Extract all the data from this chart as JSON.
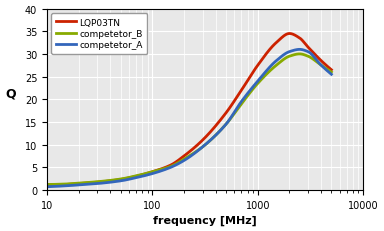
{
  "title": "",
  "xlabel": "frequency [MHz]",
  "ylabel": "Q",
  "xlim": [
    10,
    10000
  ],
  "ylim": [
    0,
    40
  ],
  "yticks": [
    0,
    5,
    10,
    15,
    20,
    25,
    30,
    35,
    40
  ],
  "background_color": "#ffffff",
  "plot_bg_color": "#e8e8e8",
  "grid_color": "#ffffff",
  "minor_grid_color": "#ffffff",
  "series": [
    {
      "label": "LQP03TN",
      "color": "#cc2200",
      "linewidth": 2.0,
      "points": [
        [
          10,
          1.1
        ],
        [
          15,
          1.2
        ],
        [
          20,
          1.4
        ],
        [
          30,
          1.7
        ],
        [
          50,
          2.3
        ],
        [
          70,
          3.0
        ],
        [
          100,
          4.0
        ],
        [
          150,
          5.5
        ],
        [
          200,
          7.5
        ],
        [
          300,
          11.0
        ],
        [
          500,
          17.0
        ],
        [
          700,
          22.0
        ],
        [
          1000,
          27.5
        ],
        [
          1500,
          32.5
        ],
        [
          2000,
          34.5
        ],
        [
          2500,
          33.5
        ],
        [
          3000,
          31.5
        ],
        [
          4000,
          28.5
        ],
        [
          5000,
          26.5
        ]
      ]
    },
    {
      "label": "competetor_B",
      "color": "#88aa00",
      "linewidth": 2.0,
      "points": [
        [
          10,
          1.2
        ],
        [
          15,
          1.3
        ],
        [
          20,
          1.5
        ],
        [
          30,
          1.8
        ],
        [
          50,
          2.4
        ],
        [
          70,
          3.1
        ],
        [
          100,
          4.0
        ],
        [
          150,
          5.2
        ],
        [
          200,
          6.8
        ],
        [
          300,
          9.5
        ],
        [
          500,
          14.5
        ],
        [
          700,
          19.0
        ],
        [
          1000,
          23.5
        ],
        [
          1500,
          27.5
        ],
        [
          2000,
          29.5
        ],
        [
          2500,
          30.0
        ],
        [
          3000,
          29.5
        ],
        [
          4000,
          27.5
        ],
        [
          5000,
          26.0
        ]
      ]
    },
    {
      "label": "competetor_A",
      "color": "#3366bb",
      "linewidth": 2.0,
      "points": [
        [
          10,
          0.7
        ],
        [
          15,
          0.9
        ],
        [
          20,
          1.1
        ],
        [
          30,
          1.4
        ],
        [
          50,
          2.0
        ],
        [
          70,
          2.7
        ],
        [
          100,
          3.6
        ],
        [
          150,
          5.0
        ],
        [
          200,
          6.5
        ],
        [
          300,
          9.5
        ],
        [
          500,
          14.5
        ],
        [
          700,
          19.5
        ],
        [
          1000,
          24.0
        ],
        [
          1500,
          28.5
        ],
        [
          2000,
          30.5
        ],
        [
          2500,
          31.0
        ],
        [
          3000,
          30.5
        ],
        [
          4000,
          27.5
        ],
        [
          5000,
          25.5
        ]
      ]
    }
  ]
}
